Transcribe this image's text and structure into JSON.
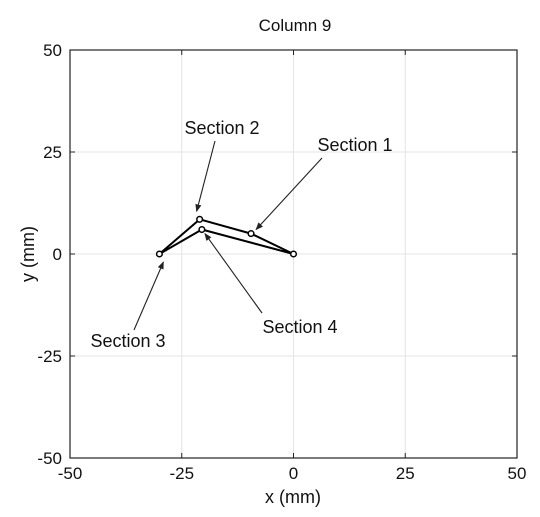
{
  "chart_data": {
    "type": "line",
    "title": "Column 9",
    "xlabel": "x (mm)",
    "ylabel": "y (mm)",
    "xlim": [
      -50,
      50
    ],
    "ylim": [
      -50,
      50
    ],
    "xticks": [
      -50,
      -25,
      0,
      25,
      50
    ],
    "yticks": [
      -50,
      -25,
      0,
      25,
      50
    ],
    "grid": true,
    "series": [
      {
        "x": [
          0,
          -9.5,
          -21,
          -30,
          -20.5,
          0
        ],
        "y": [
          0,
          5,
          8.5,
          0,
          6,
          0
        ],
        "marker": "circle",
        "color": "#000000"
      }
    ],
    "annotations": [
      {
        "text": "Section 1",
        "x": -9.5,
        "y": 5
      },
      {
        "text": "Section 2",
        "x": -21,
        "y": 8.5
      },
      {
        "text": "Section 3",
        "x": -30,
        "y": 0
      },
      {
        "text": "Section 4",
        "x": -20.5,
        "y": 6
      }
    ]
  }
}
